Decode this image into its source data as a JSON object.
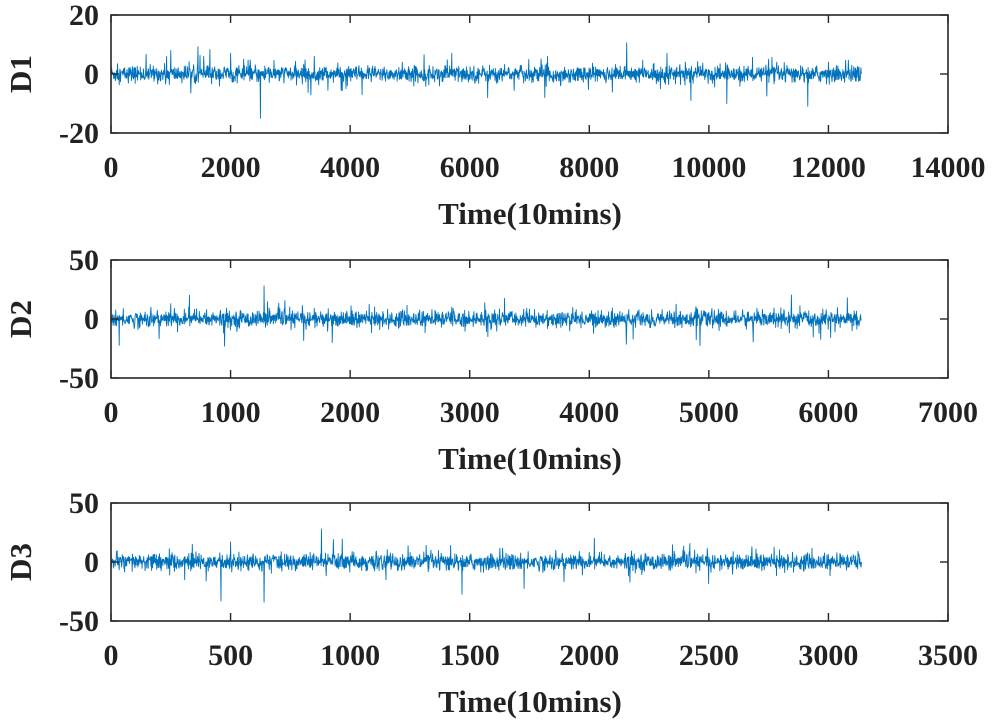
{
  "colors": {
    "series": "#0072bd",
    "axis": "#262626",
    "text": "#222222"
  },
  "chart_data": [
    {
      "type": "line",
      "ylabel": "D1",
      "xlabel": "Time(10mins)",
      "xlim": [
        0,
        14000
      ],
      "ylim": [
        -20,
        20
      ],
      "xticks": [
        "0",
        "2000",
        "4000",
        "6000",
        "8000",
        "10000",
        "12000",
        "14000"
      ],
      "yticks": [
        "-20",
        "0",
        "20"
      ],
      "n_points": 12550,
      "x": [
        0,
        1000,
        1550,
        2000,
        2500,
        3400,
        4200,
        5700,
        6300,
        7300,
        9300,
        9700,
        10300,
        11000,
        12000,
        12550
      ],
      "y": [
        4,
        8,
        6,
        7,
        -15,
        6,
        -7,
        7,
        -8,
        6,
        7,
        -9,
        -10,
        5,
        4,
        0
      ]
    },
    {
      "type": "line",
      "ylabel": "D2",
      "xlabel": "Time(10mins)",
      "xlim": [
        0,
        7000
      ],
      "ylim": [
        -50,
        50
      ],
      "xticks": [
        "0",
        "1000",
        "2000",
        "3000",
        "4000",
        "5000",
        "6000",
        "7000"
      ],
      "yticks": [
        "-50",
        "0",
        "50"
      ],
      "n_points": 6275,
      "x": [
        0,
        500,
        650,
        800,
        950,
        1280,
        1700,
        1850,
        2850,
        3650,
        4900,
        6275
      ],
      "y": [
        8,
        13,
        10,
        8,
        -23,
        28,
        9,
        -20,
        10,
        -8,
        9,
        0
      ]
    },
    {
      "type": "line",
      "ylabel": "D3",
      "xlabel": "Time(10mins)",
      "xlim": [
        0,
        3500
      ],
      "ylim": [
        -50,
        50
      ],
      "xticks": [
        "0",
        "500",
        "1000",
        "1500",
        "2000",
        "2500",
        "3000",
        "3500"
      ],
      "yticks": [
        "-50",
        "0",
        "50"
      ],
      "n_points": 3138,
      "x": [
        0,
        340,
        460,
        500,
        640,
        880,
        930,
        1150,
        1420,
        2170,
        2680,
        3138
      ],
      "y": [
        14,
        15,
        -33,
        17,
        -34,
        28,
        19,
        -15,
        14,
        -17,
        13,
        0
      ]
    }
  ]
}
